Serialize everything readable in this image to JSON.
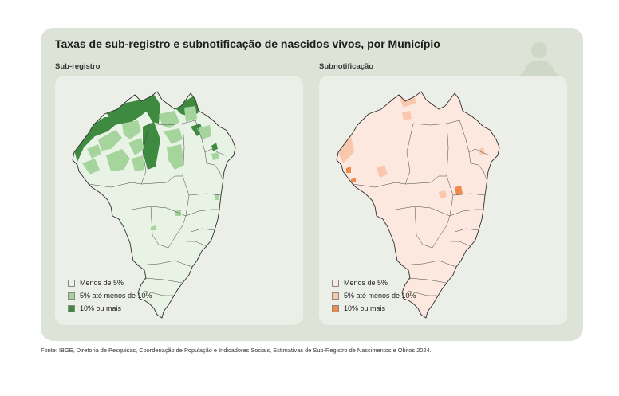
{
  "title": "Taxas de sub-registro e subnotificação de nascidos vivos, por Município",
  "panels": [
    {
      "label": "Sub-registro",
      "legend": [
        {
          "label": "Menos de 5%",
          "color": "#e8f3e6"
        },
        {
          "label": "5% até menos de 10%",
          "color": "#a6d49d"
        },
        {
          "label": "10% ou mais",
          "color": "#3d8a40"
        }
      ]
    },
    {
      "label": "Subnotificação",
      "legend": [
        {
          "label": "Menos de 5%",
          "color": "#fde8df"
        },
        {
          "label": "5% até menos de 10%",
          "color": "#f9c7ad"
        },
        {
          "label": "10% ou mais",
          "color": "#ee8a4c"
        }
      ]
    }
  ],
  "source": "Fonte: IBGE, Diretoria de Pesquisas, Coordenação de População e Indicadores Sociais, Estimativas de Sub-Registro de Nascimentos e Óbitos 2024.",
  "icons": {
    "decor": "baby-icon"
  }
}
